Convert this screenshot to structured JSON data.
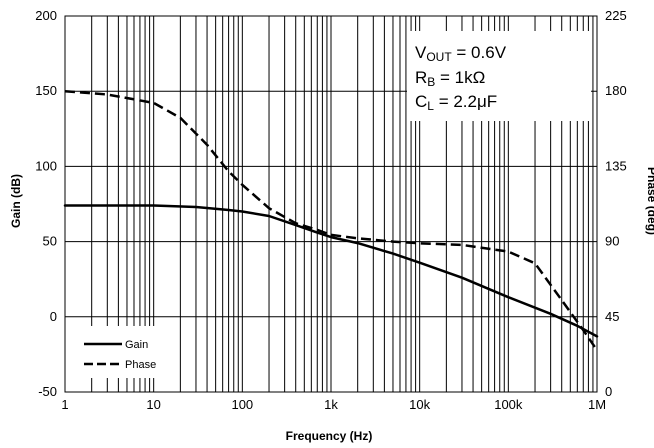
{
  "chart_data": {
    "type": "line",
    "x_scale": "log",
    "xlabel": "Frequency (Hz)",
    "ylabel_left": "Gain (dB)",
    "ylabel_right": "Phase (deg)",
    "xlim": [
      1,
      1000000
    ],
    "ylim_left": [
      -50,
      200
    ],
    "ylim_right": [
      0,
      225
    ],
    "x_ticks": [
      1,
      10,
      100,
      1000,
      10000,
      100000,
      1000000
    ],
    "x_tick_labels": [
      "1",
      "10",
      "100",
      "1k",
      "10k",
      "100k",
      "1M"
    ],
    "y_left_ticks": [
      -50,
      0,
      50,
      100,
      150,
      200
    ],
    "y_left_tick_labels": [
      "-50",
      "0",
      "50",
      "100",
      "150",
      "200"
    ],
    "y_right_ticks": [
      0,
      45,
      90,
      135,
      180,
      225
    ],
    "y_right_tick_labels": [
      "0",
      "45",
      "90",
      "135",
      "180",
      "225"
    ],
    "grid": "vertical log minor and major lines, horizontal major lines",
    "legend": {
      "placement": "bottom-left",
      "entries": [
        "Gain",
        "Phase"
      ]
    },
    "annotation": {
      "placement": "top-right",
      "lines": [
        {
          "main": "V",
          "sub": "OUT",
          "rest": " = 0.6V"
        },
        {
          "main": "R",
          "sub": "B",
          "rest": " = 1kΩ"
        },
        {
          "main": "C",
          "sub": "L",
          "rest": " = 2.2μF"
        }
      ]
    },
    "series": [
      {
        "name": "Gain",
        "axis": "left",
        "style": "solid",
        "x": [
          1,
          3,
          10,
          30,
          70,
          100,
          200,
          400,
          700,
          1000,
          2000,
          5000,
          10000,
          30000,
          100000,
          300000,
          600000,
          1000000
        ],
        "y": [
          74,
          74,
          74,
          73,
          71,
          70,
          67,
          61,
          56,
          53,
          49,
          42,
          36,
          26,
          13,
          2,
          -6,
          -13
        ]
      },
      {
        "name": "Phase",
        "axis": "right",
        "style": "dashed",
        "x": [
          1,
          3,
          10,
          20,
          40,
          70,
          100,
          200,
          400,
          700,
          1000,
          2000,
          5000,
          10000,
          30000,
          100000,
          200000,
          400000,
          700000,
          1000000
        ],
        "y": [
          180,
          178,
          173,
          164,
          148,
          132,
          124,
          110,
          101,
          97,
          94,
          92,
          90,
          89,
          88,
          84,
          77,
          55,
          37,
          25
        ]
      }
    ]
  }
}
